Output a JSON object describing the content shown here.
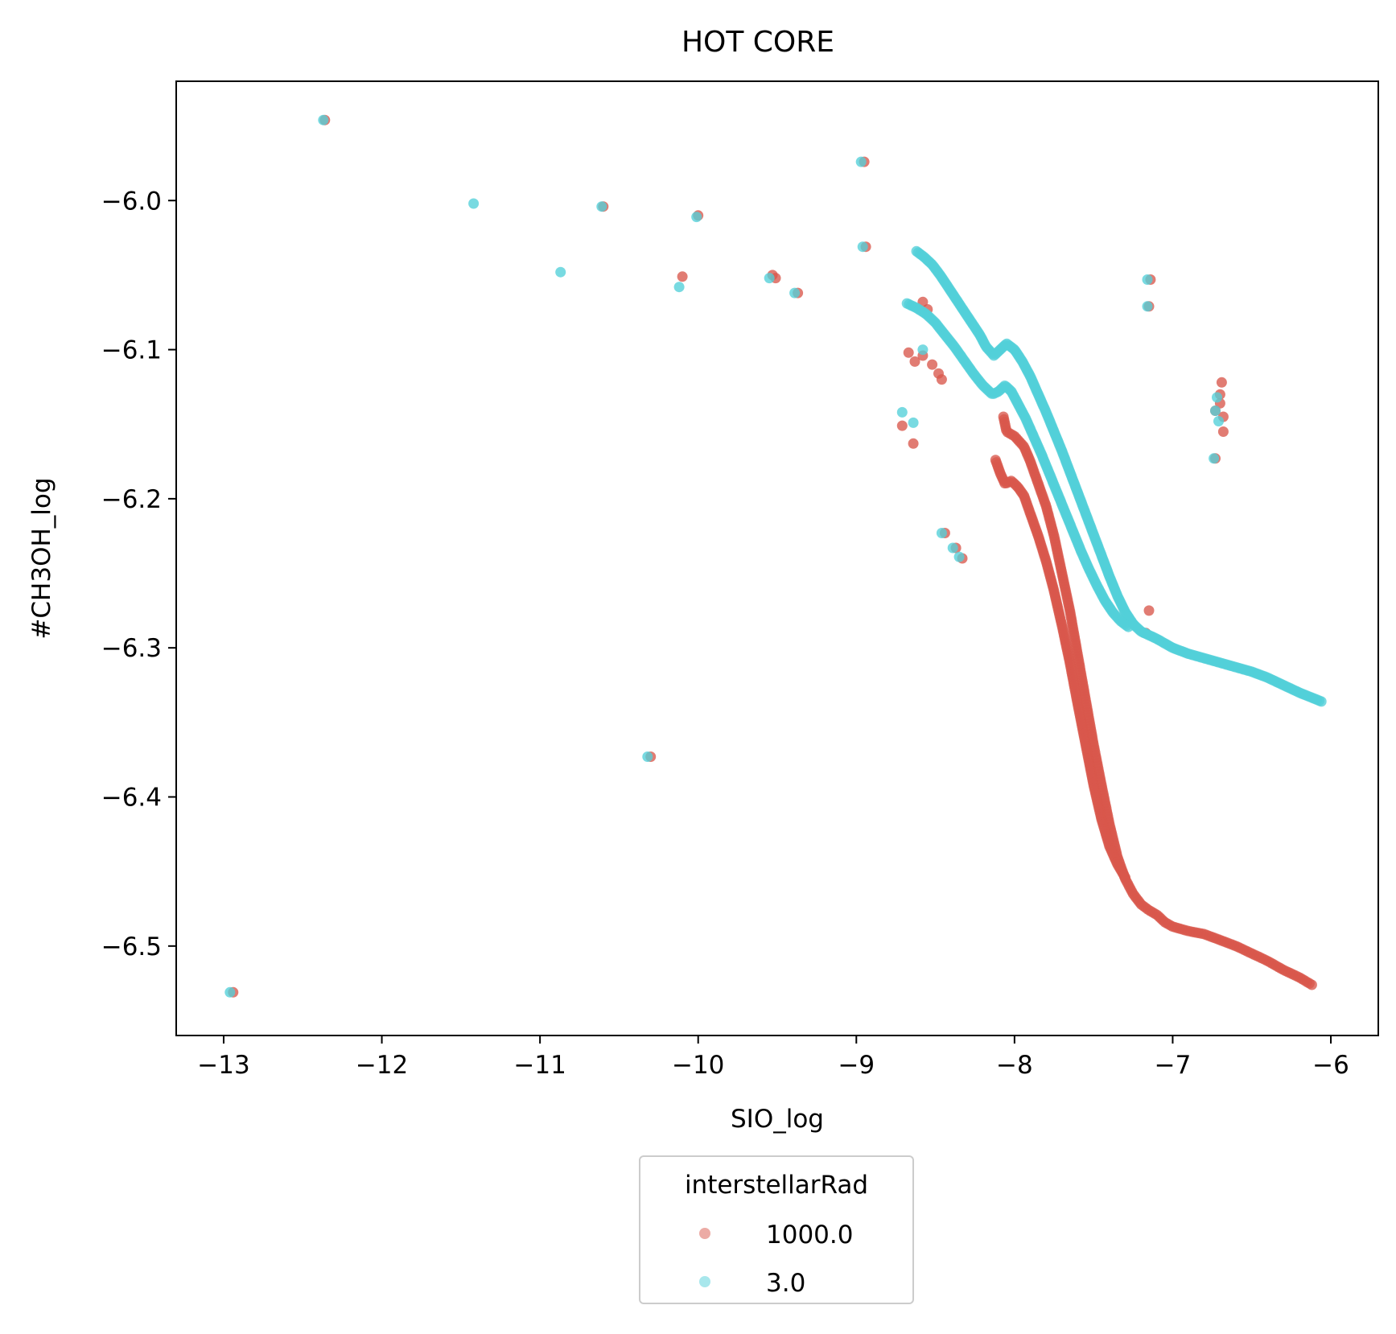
{
  "chart_data": {
    "type": "scatter",
    "title": "HOT CORE",
    "xlabel": "SIO_log",
    "ylabel": "#CH3OH_log",
    "xlim": [
      -13.3,
      -5.7
    ],
    "ylim": [
      -6.56,
      -5.92
    ],
    "xticks": [
      -13,
      -12,
      -11,
      -10,
      -9,
      -8,
      -7,
      -6
    ],
    "xtick_labels": [
      "−13",
      "−12",
      "−11",
      "−10",
      "−9",
      "−8",
      "−7",
      "−6"
    ],
    "yticks": [
      -6.0,
      -6.1,
      -6.2,
      -6.3,
      -6.4,
      -6.5
    ],
    "ytick_labels": [
      "−6.0",
      "−6.1",
      "−6.2",
      "−6.3",
      "−6.4",
      "−6.5"
    ],
    "grid": false,
    "legend": {
      "title": "interstellarRad",
      "placement": "bottom-center below axes"
    },
    "series": [
      {
        "name": "1000.0",
        "color": "#d9574b",
        "isolated_points": [
          [
            -12.36,
            -5.946
          ],
          [
            -10.0,
            -6.01
          ],
          [
            -10.1,
            -6.051
          ],
          [
            -9.53,
            -6.05
          ],
          [
            -9.51,
            -6.052
          ],
          [
            -9.37,
            -6.062
          ],
          [
            -10.6,
            -6.004
          ],
          [
            -8.95,
            -5.974
          ],
          [
            -8.94,
            -6.031
          ],
          [
            -10.3,
            -6.373
          ],
          [
            -12.94,
            -6.531
          ],
          [
            -7.14,
            -6.053
          ],
          [
            -7.15,
            -6.071
          ],
          [
            -7.15,
            -6.275
          ],
          [
            -7.17,
            -6.29
          ],
          [
            -6.69,
            -6.122
          ],
          [
            -6.7,
            -6.13
          ],
          [
            -6.7,
            -6.136
          ],
          [
            -6.68,
            -6.145
          ],
          [
            -6.68,
            -6.155
          ],
          [
            -6.73,
            -6.173
          ],
          [
            -6.73,
            -6.141
          ],
          [
            -8.67,
            -6.102
          ],
          [
            -8.63,
            -6.108
          ],
          [
            -8.58,
            -6.104
          ],
          [
            -8.52,
            -6.11
          ],
          [
            -8.48,
            -6.116
          ],
          [
            -8.46,
            -6.12
          ],
          [
            -8.71,
            -6.151
          ],
          [
            -8.64,
            -6.163
          ],
          [
            -8.33,
            -6.24
          ],
          [
            -8.37,
            -6.233
          ],
          [
            -8.44,
            -6.223
          ],
          [
            -8.58,
            -6.068
          ],
          [
            -8.55,
            -6.073
          ]
        ],
        "curves": [
          {
            "points": [
              [
                -8.07,
                -6.145
              ],
              [
                -8.05,
                -6.155
              ],
              [
                -8.0,
                -6.158
              ],
              [
                -7.94,
                -6.165
              ],
              [
                -7.9,
                -6.175
              ],
              [
                -7.85,
                -6.19
              ],
              [
                -7.8,
                -6.205
              ],
              [
                -7.75,
                -6.225
              ],
              [
                -7.7,
                -6.25
              ],
              [
                -7.65,
                -6.275
              ],
              [
                -7.6,
                -6.305
              ],
              [
                -7.55,
                -6.335
              ],
              [
                -7.5,
                -6.365
              ],
              [
                -7.45,
                -6.392
              ],
              [
                -7.4,
                -6.418
              ],
              [
                -7.35,
                -6.44
              ],
              [
                -7.3,
                -6.455
              ],
              [
                -7.25,
                -6.465
              ],
              [
                -7.2,
                -6.472
              ],
              [
                -7.15,
                -6.476
              ],
              [
                -7.1,
                -6.479
              ],
              [
                -7.05,
                -6.484
              ],
              [
                -7.0,
                -6.487
              ],
              [
                -6.9,
                -6.49
              ],
              [
                -6.8,
                -6.492
              ],
              [
                -6.7,
                -6.496
              ],
              [
                -6.6,
                -6.5
              ],
              [
                -6.5,
                -6.505
              ],
              [
                -6.4,
                -6.51
              ],
              [
                -6.3,
                -6.516
              ],
              [
                -6.2,
                -6.521
              ],
              [
                -6.12,
                -6.526
              ]
            ],
            "count": 260
          },
          {
            "points": [
              [
                -8.12,
                -6.174
              ],
              [
                -8.09,
                -6.183
              ],
              [
                -8.06,
                -6.19
              ],
              [
                -8.02,
                -6.188
              ],
              [
                -7.98,
                -6.192
              ],
              [
                -7.94,
                -6.198
              ],
              [
                -7.9,
                -6.21
              ],
              [
                -7.85,
                -6.225
              ],
              [
                -7.8,
                -6.242
              ],
              [
                -7.75,
                -6.262
              ],
              [
                -7.7,
                -6.285
              ],
              [
                -7.65,
                -6.31
              ],
              [
                -7.6,
                -6.338
              ],
              [
                -7.55,
                -6.365
              ],
              [
                -7.5,
                -6.392
              ],
              [
                -7.45,
                -6.415
              ],
              [
                -7.4,
                -6.433
              ],
              [
                -7.35,
                -6.445
              ],
              [
                -7.3,
                -6.454
              ]
            ],
            "count": 180
          }
        ]
      },
      {
        "name": "3.0",
        "color": "#52d0d9",
        "isolated_points": [
          [
            -12.37,
            -5.946
          ],
          [
            -11.42,
            -6.002
          ],
          [
            -10.87,
            -6.048
          ],
          [
            -10.61,
            -6.004
          ],
          [
            -10.01,
            -6.011
          ],
          [
            -10.12,
            -6.058
          ],
          [
            -9.55,
            -6.052
          ],
          [
            -9.39,
            -6.062
          ],
          [
            -8.97,
            -5.974
          ],
          [
            -8.96,
            -6.031
          ],
          [
            -10.32,
            -6.373
          ],
          [
            -12.96,
            -6.531
          ],
          [
            -7.16,
            -6.053
          ],
          [
            -7.16,
            -6.071
          ],
          [
            -6.74,
            -6.173
          ],
          [
            -6.73,
            -6.141
          ],
          [
            -6.72,
            -6.132
          ],
          [
            -6.71,
            -6.148
          ],
          [
            -8.71,
            -6.142
          ],
          [
            -8.64,
            -6.149
          ],
          [
            -8.46,
            -6.223
          ],
          [
            -8.39,
            -6.233
          ],
          [
            -8.35,
            -6.239
          ],
          [
            -8.58,
            -6.1
          ],
          [
            -7.18,
            -6.29
          ]
        ],
        "curves": [
          {
            "points": [
              [
                -8.62,
                -6.034
              ],
              [
                -8.57,
                -6.038
              ],
              [
                -8.52,
                -6.043
              ],
              [
                -8.47,
                -6.05
              ],
              [
                -8.42,
                -6.058
              ],
              [
                -8.37,
                -6.066
              ],
              [
                -8.32,
                -6.074
              ],
              [
                -8.27,
                -6.082
              ],
              [
                -8.22,
                -6.09
              ],
              [
                -8.18,
                -6.098
              ],
              [
                -8.13,
                -6.104
              ],
              [
                -8.09,
                -6.1
              ],
              [
                -8.05,
                -6.096
              ],
              [
                -8.0,
                -6.1
              ],
              [
                -7.95,
                -6.108
              ],
              [
                -7.9,
                -6.118
              ],
              [
                -7.85,
                -6.13
              ],
              [
                -7.8,
                -6.142
              ],
              [
                -7.75,
                -6.155
              ],
              [
                -7.7,
                -6.168
              ],
              [
                -7.65,
                -6.182
              ],
              [
                -7.6,
                -6.196
              ],
              [
                -7.55,
                -6.21
              ],
              [
                -7.5,
                -6.224
              ],
              [
                -7.45,
                -6.238
              ],
              [
                -7.4,
                -6.252
              ],
              [
                -7.35,
                -6.265
              ],
              [
                -7.3,
                -6.276
              ],
              [
                -7.25,
                -6.284
              ],
              [
                -7.2,
                -6.289
              ],
              [
                -7.1,
                -6.294
              ],
              [
                -7.0,
                -6.3
              ],
              [
                -6.9,
                -6.304
              ],
              [
                -6.8,
                -6.307
              ],
              [
                -6.7,
                -6.31
              ],
              [
                -6.6,
                -6.313
              ],
              [
                -6.5,
                -6.316
              ],
              [
                -6.4,
                -6.32
              ],
              [
                -6.3,
                -6.325
              ],
              [
                -6.2,
                -6.33
              ],
              [
                -6.06,
                -6.336
              ]
            ],
            "count": 300
          },
          {
            "points": [
              [
                -8.68,
                -6.069
              ],
              [
                -8.62,
                -6.072
              ],
              [
                -8.56,
                -6.076
              ],
              [
                -8.5,
                -6.082
              ],
              [
                -8.44,
                -6.09
              ],
              [
                -8.38,
                -6.098
              ],
              [
                -8.32,
                -6.107
              ],
              [
                -8.26,
                -6.116
              ],
              [
                -8.2,
                -6.124
              ],
              [
                -8.14,
                -6.13
              ],
              [
                -8.1,
                -6.128
              ],
              [
                -8.06,
                -6.124
              ],
              [
                -8.02,
                -6.128
              ],
              [
                -7.98,
                -6.136
              ],
              [
                -7.93,
                -6.146
              ],
              [
                -7.88,
                -6.158
              ],
              [
                -7.83,
                -6.17
              ],
              [
                -7.78,
                -6.183
              ],
              [
                -7.73,
                -6.196
              ],
              [
                -7.68,
                -6.209
              ],
              [
                -7.63,
                -6.222
              ],
              [
                -7.58,
                -6.235
              ],
              [
                -7.53,
                -6.247
              ],
              [
                -7.48,
                -6.258
              ],
              [
                -7.43,
                -6.268
              ],
              [
                -7.38,
                -6.276
              ],
              [
                -7.33,
                -6.282
              ],
              [
                -7.28,
                -6.286
              ]
            ],
            "count": 180
          }
        ]
      }
    ]
  }
}
